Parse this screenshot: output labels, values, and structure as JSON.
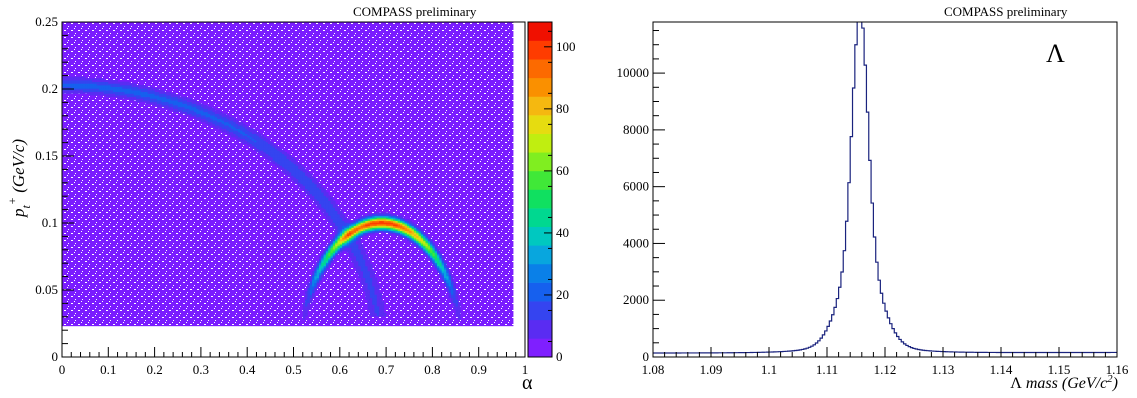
{
  "chart_data": [
    {
      "type": "heatmap",
      "annotation": "COMPASS preliminary",
      "xlabel": "α",
      "ylabel_main": "p",
      "ylabel_sub": "t",
      "ylabel_sup": "+",
      "ylabel_unit": " (GeV/c)",
      "xlim": [
        0,
        1
      ],
      "ylim": [
        0,
        0.25
      ],
      "x_ticks": [
        "0",
        "0.1",
        "0.2",
        "0.3",
        "0.4",
        "0.5",
        "0.6",
        "0.7",
        "0.8",
        "0.9",
        "1"
      ],
      "y_ticks": [
        "0",
        "0.05",
        "0.1",
        "0.15",
        "0.2",
        "0.25"
      ],
      "colorbar": {
        "range": [
          0,
          108
        ],
        "ticks": [
          "0",
          "20",
          "40",
          "60",
          "80",
          "100"
        ],
        "colors": [
          "#7f1fff",
          "#5a2cf2",
          "#3544f0",
          "#1660ee",
          "#0a80e8",
          "#08a6de",
          "#00c8c0",
          "#00d890",
          "#10e060",
          "#40e838",
          "#80ee20",
          "#c0ee10",
          "#e6dc10",
          "#f5b810",
          "#fa9000",
          "#fc6a00",
          "#fe3c00",
          "#f01000"
        ]
      },
      "bands": [
        {
          "name": "K0 arc",
          "center_alpha": 0.69,
          "radius_alpha": 0.175,
          "peak_pt": 0.1,
          "peak_counts": 100
        },
        {
          "name": "Lambda arc",
          "center_alpha": 0,
          "half_width_alpha": 0.69,
          "peak_pt": 0.203,
          "peak_counts": 20
        }
      ],
      "data_region": {
        "alpha_min": 0,
        "alpha_max": 0.975,
        "pt_min": 0.023,
        "pt_max": 0.25
      }
    },
    {
      "type": "line",
      "annotation": "COMPASS preliminary",
      "label": "Λ",
      "xlabel_symbol": "Λ",
      "xlabel_text": " mass (GeV/c",
      "xlabel_sup": "2",
      "xlabel_end": ")",
      "xlim": [
        1.08,
        1.16
      ],
      "ylim": [
        0,
        11800
      ],
      "x_ticks": [
        "1.08",
        "1.09",
        "1.1",
        "1.11",
        "1.12",
        "1.13",
        "1.14",
        "1.15",
        "1.16"
      ],
      "y_ticks": [
        "0",
        "2000",
        "4000",
        "6000",
        "8000",
        "10000"
      ],
      "peak": {
        "mean": 1.1157,
        "sigma": 0.0013,
        "height": 11250
      },
      "background": {
        "at_1.08": 140,
        "at_1.16": 160
      },
      "bin_width": 0.0004,
      "color": "#1a237e"
    }
  ]
}
